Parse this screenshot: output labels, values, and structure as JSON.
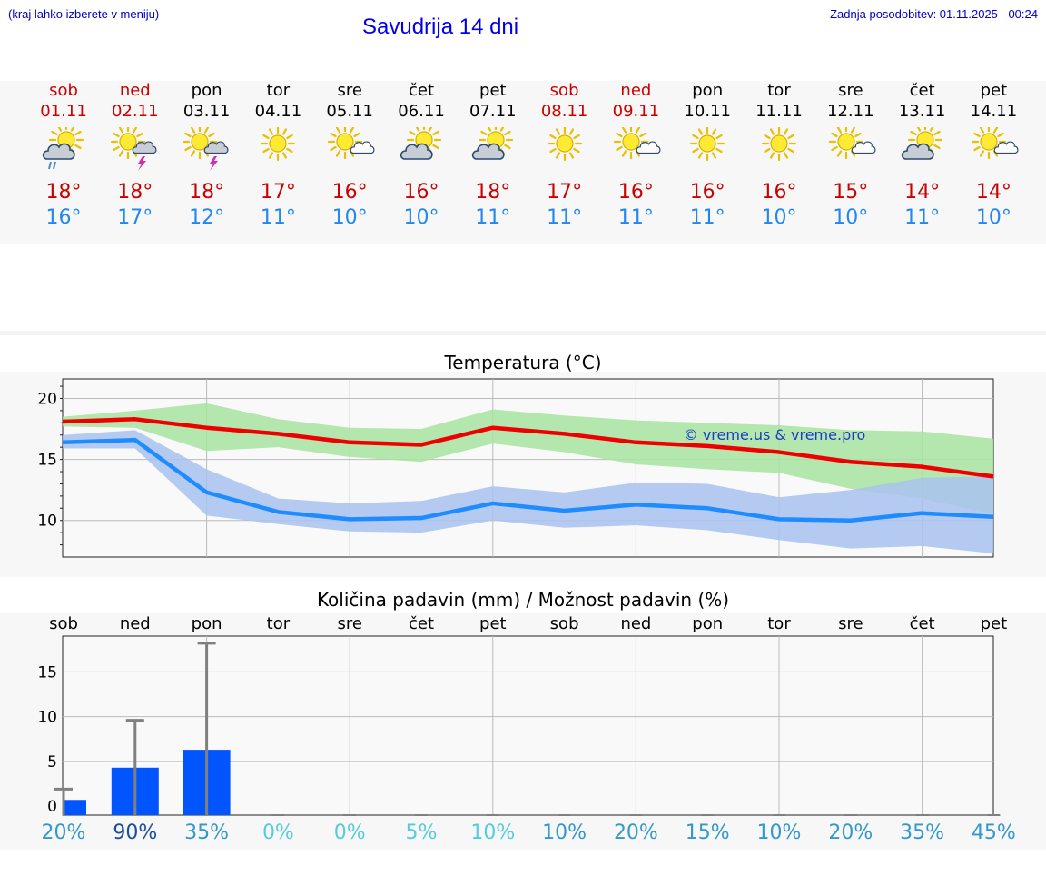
{
  "header": {
    "location_hint": "(kraj lahko izberete v meniju)",
    "title": "Savudrija 14 dni",
    "last_update": "Zadnja posodobitev: 01.11.2025 - 00:24"
  },
  "days": [
    {
      "name": "sob",
      "date": "01.11",
      "weekend": true,
      "icon": "partly-cloudy-rain-icon",
      "tmax": "18°",
      "tmin": "16°"
    },
    {
      "name": "ned",
      "date": "02.11",
      "weekend": true,
      "icon": "sun-storm-icon",
      "tmax": "18°",
      "tmin": "17°"
    },
    {
      "name": "pon",
      "date": "03.11",
      "weekend": false,
      "icon": "sun-storm-icon",
      "tmax": "18°",
      "tmin": "12°"
    },
    {
      "name": "tor",
      "date": "04.11",
      "weekend": false,
      "icon": "sun-icon",
      "tmax": "17°",
      "tmin": "11°"
    },
    {
      "name": "sre",
      "date": "05.11",
      "weekend": false,
      "icon": "sun-small-cloud-icon",
      "tmax": "16°",
      "tmin": "10°"
    },
    {
      "name": "čet",
      "date": "06.11",
      "weekend": false,
      "icon": "partly-cloudy-icon",
      "tmax": "16°",
      "tmin": "10°"
    },
    {
      "name": "pet",
      "date": "07.11",
      "weekend": false,
      "icon": "partly-cloudy-icon",
      "tmax": "18°",
      "tmin": "11°"
    },
    {
      "name": "sob",
      "date": "08.11",
      "weekend": true,
      "icon": "sun-icon",
      "tmax": "17°",
      "tmin": "11°"
    },
    {
      "name": "ned",
      "date": "09.11",
      "weekend": true,
      "icon": "sun-small-cloud-icon",
      "tmax": "16°",
      "tmin": "11°"
    },
    {
      "name": "pon",
      "date": "10.11",
      "weekend": false,
      "icon": "sun-icon",
      "tmax": "16°",
      "tmin": "11°"
    },
    {
      "name": "tor",
      "date": "11.11",
      "weekend": false,
      "icon": "sun-icon",
      "tmax": "16°",
      "tmin": "10°"
    },
    {
      "name": "sre",
      "date": "12.11",
      "weekend": false,
      "icon": "sun-small-cloud-icon",
      "tmax": "15°",
      "tmin": "10°"
    },
    {
      "name": "čet",
      "date": "13.11",
      "weekend": false,
      "icon": "partly-cloudy-icon",
      "tmax": "14°",
      "tmin": "11°"
    },
    {
      "name": "pet",
      "date": "14.11",
      "weekend": false,
      "icon": "sun-small-cloud-icon",
      "tmax": "14°",
      "tmin": "10°"
    }
  ],
  "colors": {
    "max_line": "#ee0000",
    "max_band": "#a8e4a0",
    "min_line": "#1e8cff",
    "min_band": "#a9c2f0",
    "weekend": "#cc0000",
    "weekday": "#000000",
    "bar": "#0055ff",
    "whisker": "#808080",
    "grid": "#bbbbbb"
  },
  "chart_data": [
    {
      "type": "line",
      "title": "Temperatura (°C)",
      "watermark": "© vreme.us & vreme.pro",
      "categories": [
        "sob",
        "ned",
        "pon",
        "tor",
        "sre",
        "čet",
        "pet",
        "sob",
        "ned",
        "pon",
        "tor",
        "sre",
        "čet",
        "pet"
      ],
      "ylim": [
        7.0,
        21.6
      ],
      "yticks": [
        10,
        15,
        20
      ],
      "series": [
        {
          "name": "max",
          "values": [
            18.1,
            18.3,
            17.6,
            17.1,
            16.4,
            16.2,
            17.6,
            17.1,
            16.4,
            16.1,
            15.6,
            14.8,
            14.4,
            13.6
          ],
          "band_low": [
            17.7,
            17.6,
            15.7,
            16.0,
            15.2,
            14.8,
            16.3,
            15.6,
            14.6,
            14.2,
            13.9,
            12.6,
            11.8,
            10.5
          ],
          "band_high": [
            18.5,
            19.0,
            19.6,
            18.3,
            17.6,
            17.5,
            19.1,
            18.6,
            18.2,
            18.0,
            17.8,
            17.4,
            17.3,
            16.7
          ]
        },
        {
          "name": "min",
          "values": [
            16.4,
            16.6,
            12.3,
            10.7,
            10.1,
            10.2,
            11.4,
            10.8,
            11.3,
            11.0,
            10.1,
            10.0,
            10.6,
            10.3
          ],
          "band_low": [
            15.9,
            15.9,
            10.4,
            9.7,
            9.1,
            9.0,
            10.0,
            9.4,
            9.6,
            9.2,
            8.4,
            7.7,
            7.9,
            7.3
          ],
          "band_high": [
            17.0,
            17.4,
            14.2,
            11.8,
            11.4,
            11.6,
            12.8,
            12.3,
            13.1,
            13.0,
            11.9,
            12.5,
            13.5,
            13.6
          ]
        }
      ]
    },
    {
      "type": "bar",
      "title": "Količina padavin (mm) / Možnost padavin (%)",
      "categories": [
        "sob",
        "ned",
        "pon",
        "tor",
        "sre",
        "čet",
        "pet",
        "sob",
        "ned",
        "pon",
        "tor",
        "sre",
        "čet",
        "pet"
      ],
      "ylim": [
        -1,
        19
      ],
      "yticks": [
        0,
        5,
        10,
        15
      ],
      "values": [
        0.7,
        4.3,
        6.3,
        0,
        0,
        0,
        0,
        0,
        0,
        0,
        0,
        0,
        0,
        0
      ],
      "error_high": [
        1.9,
        9.6,
        18.2,
        0,
        0,
        0,
        0,
        0,
        0,
        0,
        0,
        0,
        0,
        0
      ],
      "probability": [
        "20%",
        "90%",
        "35%",
        "0%",
        "0%",
        "5%",
        "10%",
        "10%",
        "20%",
        "15%",
        "10%",
        "20%",
        "35%",
        "45%"
      ],
      "probability_colors": [
        "#3399cc",
        "#1a4fa0",
        "#3399cc",
        "#55ccdd",
        "#55ccdd",
        "#55ccdd",
        "#55ccdd",
        "#3399cc",
        "#3399cc",
        "#3399cc",
        "#3399cc",
        "#3399cc",
        "#3399cc",
        "#3399cc"
      ]
    }
  ]
}
